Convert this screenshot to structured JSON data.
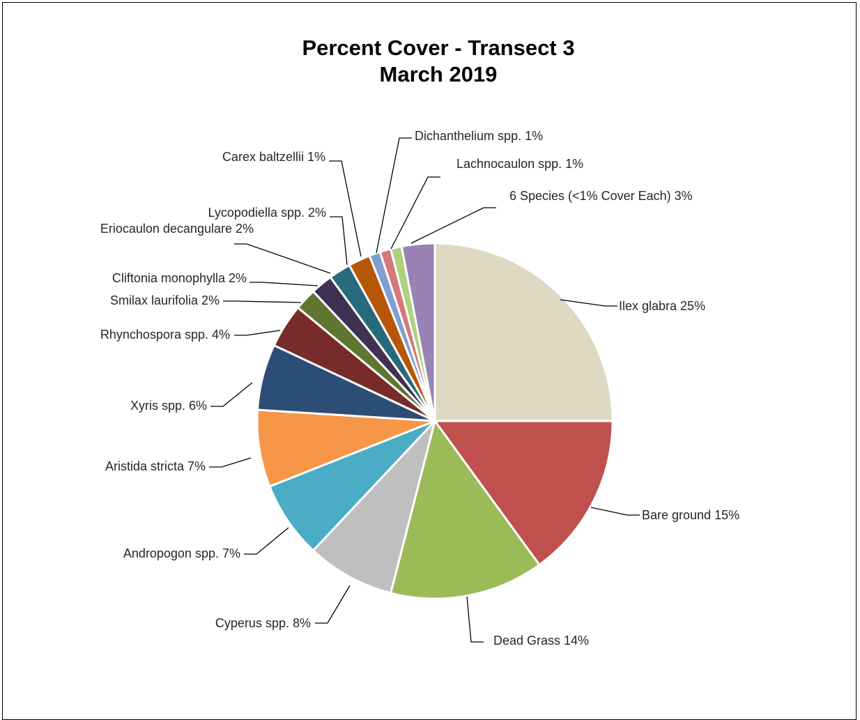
{
  "chart_data": {
    "type": "pie",
    "title": "Percent Cover - Transect 3",
    "subtitle": "March 2019",
    "slices": [
      {
        "name": "Ilex glabra",
        "value": 25,
        "label": "Ilex glabra 25%",
        "color": "#DDD9C3"
      },
      {
        "name": "Bare ground",
        "value": 15,
        "label": "Bare ground 15%",
        "color": "#C0504D"
      },
      {
        "name": "Dead Grass",
        "value": 14,
        "label": "Dead Grass 14%",
        "color": "#9BBB59"
      },
      {
        "name": "Cyperus spp.",
        "value": 8,
        "label": "Cyperus spp. 8%",
        "color": "#BFBFBF"
      },
      {
        "name": "Andropogon spp.",
        "value": 7,
        "label": "Andropogon spp. 7%",
        "color": "#4BACC6"
      },
      {
        "name": "Aristida stricta",
        "value": 7,
        "label": "Aristida stricta 7%",
        "color": "#F79646"
      },
      {
        "name": "Xyris spp.",
        "value": 6,
        "label": "Xyris spp. 6%",
        "color": "#2C4D75"
      },
      {
        "name": "Rhynchospora spp.",
        "value": 4,
        "label": "Rhynchospora spp. 4%",
        "color": "#772C2A"
      },
      {
        "name": "Smilax laurifolia",
        "value": 2,
        "label": "Smilax laurifolia 2%",
        "color": "#5F7530"
      },
      {
        "name": "Cliftonia monophylla",
        "value": 2,
        "label": "Cliftonia monophylla 2%",
        "color": "#3E3151"
      },
      {
        "name": "Eriocaulon decangulare",
        "value": 2,
        "label": "Eriocaulon decangulare 2%",
        "color": "#276A7C"
      },
      {
        "name": "Lycopodiella spp.",
        "value": 2,
        "label": "Lycopodiella spp. 2%",
        "color": "#B65708"
      },
      {
        "name": "Carex baltzellii",
        "value": 1,
        "label": "Carex baltzellii 1%",
        "color": "#7F9FD2"
      },
      {
        "name": "Dichanthelium spp.",
        "value": 1,
        "label": "Dichanthelium spp. 1%",
        "color": "#D27A78"
      },
      {
        "name": "Lachnocaulon spp.",
        "value": 1,
        "label": "Lachnocaulon spp. 1%",
        "color": "#AFD07D"
      },
      {
        "name": "6 Species (<1% Cover Each)",
        "value": 3,
        "label": "6 Species (<1% Cover Each) 3%",
        "color": "#9983B5"
      }
    ]
  }
}
